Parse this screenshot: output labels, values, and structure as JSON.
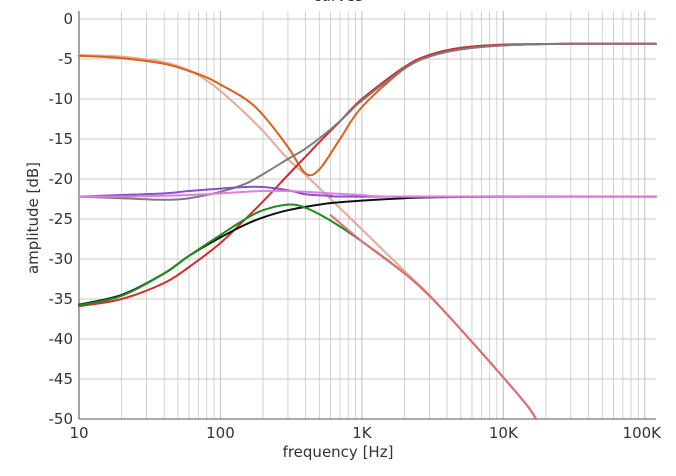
{
  "chart_data": {
    "type": "line",
    "title": "curves",
    "xlabel": "frequency [Hz]",
    "ylabel": "amplitude [dB]",
    "x_scale": "log",
    "xlim": [
      10,
      120000
    ],
    "ylim": [
      -50,
      1
    ],
    "x_ticks": [
      {
        "value": 10,
        "label": "10"
      },
      {
        "value": 100,
        "label": "100"
      },
      {
        "value": 1000,
        "label": "1K"
      },
      {
        "value": 10000,
        "label": "10K"
      },
      {
        "value": 100000,
        "label": "100K"
      }
    ],
    "y_ticks": [
      0,
      -5,
      -10,
      -15,
      -20,
      -25,
      -30,
      -35,
      -40,
      -45,
      -50
    ],
    "grid": true,
    "colors": {
      "grid": "#c8c8c8",
      "axis": "#555555"
    },
    "series": [
      {
        "color": "#e5aa96",
        "points": [
          [
            10,
            -4.5
          ],
          [
            20,
            -4.7
          ],
          [
            40,
            -5.4
          ],
          [
            60,
            -6.4
          ],
          [
            80,
            -7.7
          ],
          [
            100,
            -9.0
          ],
          [
            150,
            -11.8
          ],
          [
            200,
            -14.0
          ],
          [
            300,
            -17.5
          ],
          [
            400,
            -19.5
          ],
          [
            600,
            -22.5
          ],
          [
            1000,
            -26.3
          ],
          [
            2000,
            -31.5
          ],
          [
            3000,
            -34.5
          ],
          [
            5000,
            -38.8
          ],
          [
            10000,
            -44.8
          ],
          [
            15000,
            -48.5
          ],
          [
            17000,
            -50
          ]
        ]
      },
      {
        "color": "#d9601e",
        "points": [
          [
            10,
            -4.6
          ],
          [
            20,
            -4.9
          ],
          [
            40,
            -5.6
          ],
          [
            60,
            -6.5
          ],
          [
            80,
            -7.3
          ],
          [
            100,
            -8.2
          ],
          [
            150,
            -10.0
          ],
          [
            200,
            -12.0
          ],
          [
            300,
            -16.0
          ],
          [
            400,
            -19.3
          ],
          [
            500,
            -18.8
          ],
          [
            700,
            -15.0
          ],
          [
            1000,
            -11.0
          ],
          [
            2000,
            -6.2
          ],
          [
            3000,
            -4.7
          ],
          [
            5000,
            -3.8
          ],
          [
            10000,
            -3.3
          ],
          [
            30000,
            -3.1
          ],
          [
            120000,
            -3.1
          ]
        ]
      },
      {
        "color": "#d42a2a",
        "points": [
          [
            10,
            -35.9
          ],
          [
            20,
            -35.0
          ],
          [
            40,
            -33.0
          ],
          [
            60,
            -31.0
          ],
          [
            100,
            -28.0
          ],
          [
            150,
            -25.0
          ],
          [
            200,
            -22.8
          ],
          [
            300,
            -19.5
          ],
          [
            400,
            -17.2
          ],
          [
            500,
            -15.4
          ],
          [
            700,
            -12.8
          ],
          [
            1000,
            -10.0
          ],
          [
            2000,
            -6.0
          ],
          [
            3000,
            -4.5
          ],
          [
            5000,
            -3.6
          ],
          [
            10000,
            -3.2
          ],
          [
            30000,
            -3.1
          ],
          [
            120000,
            -3.1
          ]
        ]
      },
      {
        "color": "#7c7c7c",
        "points": [
          [
            10,
            -22.2
          ],
          [
            20,
            -22.4
          ],
          [
            40,
            -22.6
          ],
          [
            60,
            -22.4
          ],
          [
            100,
            -21.6
          ],
          [
            150,
            -20.6
          ],
          [
            200,
            -19.4
          ],
          [
            300,
            -17.5
          ],
          [
            400,
            -16.2
          ],
          [
            600,
            -13.8
          ],
          [
            800,
            -11.8
          ],
          [
            1000,
            -10.2
          ],
          [
            2000,
            -6.2
          ],
          [
            3000,
            -4.7
          ],
          [
            5000,
            -3.8
          ],
          [
            10000,
            -3.3
          ],
          [
            30000,
            -3.1
          ],
          [
            120000,
            -3.1
          ]
        ]
      },
      {
        "color": "#111111",
        "points": [
          [
            10,
            -35.7
          ],
          [
            20,
            -34.5
          ],
          [
            40,
            -31.8
          ],
          [
            60,
            -29.6
          ],
          [
            100,
            -27.3
          ],
          [
            150,
            -25.7
          ],
          [
            200,
            -24.8
          ],
          [
            300,
            -23.9
          ],
          [
            500,
            -23.2
          ],
          [
            700,
            -22.9
          ],
          [
            1000,
            -22.7
          ],
          [
            2000,
            -22.4
          ],
          [
            3000,
            -22.3
          ],
          [
            10000,
            -22.2
          ],
          [
            120000,
            -22.2
          ]
        ]
      },
      {
        "color": "#1c8c1c",
        "points": [
          [
            10,
            -35.8
          ],
          [
            20,
            -34.6
          ],
          [
            40,
            -31.8
          ],
          [
            60,
            -29.6
          ],
          [
            100,
            -27.0
          ],
          [
            150,
            -25.0
          ],
          [
            200,
            -23.9
          ],
          [
            300,
            -23.2
          ],
          [
            400,
            -23.6
          ],
          [
            600,
            -25.2
          ],
          [
            1000,
            -27.8
          ],
          [
            2000,
            -31.8
          ],
          [
            3000,
            -34.6
          ],
          [
            5000,
            -38.8
          ],
          [
            10000,
            -44.8
          ],
          [
            15000,
            -48.5
          ],
          [
            17000,
            -50
          ]
        ]
      },
      {
        "color": "#8a4fc9",
        "points": [
          [
            10,
            -22.2
          ],
          [
            20,
            -22.0
          ],
          [
            40,
            -21.8
          ],
          [
            60,
            -21.5
          ],
          [
            100,
            -21.2
          ],
          [
            150,
            -21.0
          ],
          [
            200,
            -21.0
          ],
          [
            300,
            -21.4
          ],
          [
            400,
            -21.9
          ],
          [
            600,
            -22.1
          ],
          [
            1000,
            -22.2
          ],
          [
            120000,
            -22.2
          ]
        ]
      },
      {
        "color": "#e07de0",
        "points": [
          [
            10,
            -22.2
          ],
          [
            20,
            -22.2
          ],
          [
            40,
            -22.1
          ],
          [
            60,
            -22.0
          ],
          [
            100,
            -21.8
          ],
          [
            150,
            -21.6
          ],
          [
            200,
            -21.5
          ],
          [
            300,
            -21.5
          ],
          [
            400,
            -21.6
          ],
          [
            600,
            -21.8
          ],
          [
            1000,
            -22.0
          ],
          [
            2000,
            -22.2
          ],
          [
            120000,
            -22.2
          ]
        ]
      },
      {
        "color": "#e46c7a",
        "points": [
          [
            600,
            -24.5
          ],
          [
            1000,
            -27.8
          ],
          [
            2000,
            -31.8
          ],
          [
            3000,
            -34.6
          ],
          [
            5000,
            -38.8
          ],
          [
            10000,
            -44.8
          ],
          [
            15000,
            -48.5
          ],
          [
            17000,
            -50
          ]
        ]
      }
    ]
  }
}
